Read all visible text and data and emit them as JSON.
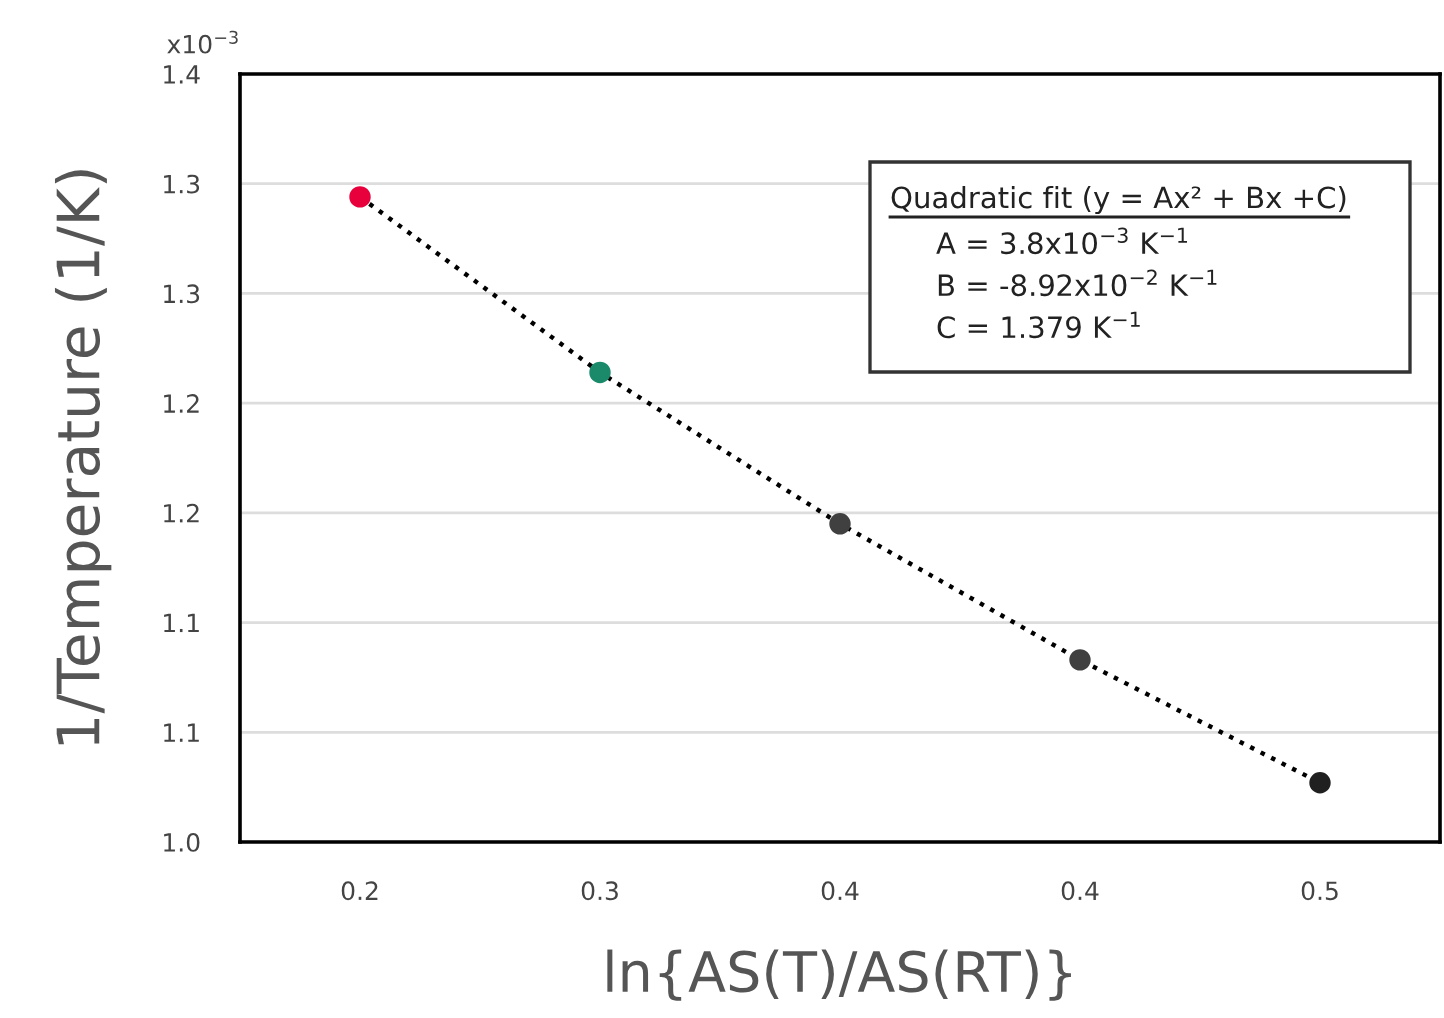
{
  "chart_data": {
    "type": "scatter",
    "xlabel": "ln{AS(T)/AS(RT)}",
    "ylabel": "1/Temperature (1/K)",
    "x": [
      0.2,
      0.275,
      0.35,
      0.425,
      0.5
    ],
    "series": [
      {
        "type": "line",
        "color": "#000000",
        "line_style": "dotted",
        "values": [
          1.294,
          1.214,
          1.145,
          1.083,
          1.027
        ]
      },
      {
        "marker": "circle",
        "colors": [
          "#e8003c",
          "#1a8a6a",
          "#404040",
          "#404040",
          "#202020"
        ],
        "values": [
          1.294,
          1.214,
          1.145,
          1.083,
          1.027
        ]
      }
    ],
    "xlim": [
      0.1625,
      0.5375
    ],
    "xticks": [
      {
        "value": 0.2,
        "label": "0.2"
      },
      {
        "value": 0.275,
        "label": "0.3"
      },
      {
        "value": 0.35,
        "label": "0.4"
      },
      {
        "value": 0.425,
        "label": "0.4"
      },
      {
        "value": 0.5,
        "label": "0.5"
      }
    ],
    "ylim": [
      1.0,
      1.35
    ],
    "yticks": [
      {
        "value": 1.0,
        "label": "1.0"
      },
      {
        "value": 1.05,
        "label": "1.1"
      },
      {
        "value": 1.1,
        "label": "1.1"
      },
      {
        "value": 1.15,
        "label": "1.2"
      },
      {
        "value": 1.2,
        "label": "1.2"
      },
      {
        "value": 1.25,
        "label": "1.3"
      },
      {
        "value": 1.3,
        "label": "1.3"
      },
      {
        "value": 1.35,
        "label": "1.4"
      }
    ],
    "grid": "y",
    "legend": false,
    "annotations": [
      "x10$^{−3}$",
      "Quadratic fit (y = Ax² + Bx +C)",
      "A = 3.8x10$^{−3}$ K$^{−1}$",
      "B = -8.92x10$^{−2}$ K$^{−1}$",
      "C = 1.379 K$^{−1}$"
    ]
  }
}
